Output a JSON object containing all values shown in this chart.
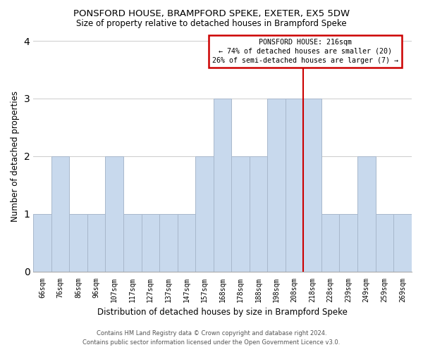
{
  "title": "PONSFORD HOUSE, BRAMPFORD SPEKE, EXETER, EX5 5DW",
  "subtitle": "Size of property relative to detached houses in Brampford Speke",
  "xlabel": "Distribution of detached houses by size in Brampford Speke",
  "ylabel": "Number of detached properties",
  "bin_labels": [
    "66sqm",
    "76sqm",
    "86sqm",
    "96sqm",
    "107sqm",
    "117sqm",
    "127sqm",
    "137sqm",
    "147sqm",
    "157sqm",
    "168sqm",
    "178sqm",
    "188sqm",
    "198sqm",
    "208sqm",
    "218sqm",
    "228sqm",
    "239sqm",
    "249sqm",
    "259sqm",
    "269sqm"
  ],
  "bar_heights": [
    1,
    2,
    1,
    1,
    2,
    1,
    1,
    1,
    1,
    2,
    3,
    2,
    2,
    3,
    3,
    3,
    1,
    1,
    2,
    1,
    1
  ],
  "bar_color": "#c8d9ed",
  "bar_edge_color": "#a8b8cc",
  "vline_color": "#cc0000",
  "ylim": [
    0,
    4
  ],
  "yticks": [
    0,
    1,
    2,
    3,
    4
  ],
  "annotation_title": "PONSFORD HOUSE: 216sqm",
  "annotation_line1": "← 74% of detached houses are smaller (20)",
  "annotation_line2": "26% of semi-detached houses are larger (7) →",
  "footnote1": "Contains HM Land Registry data © Crown copyright and database right 2024.",
  "footnote2": "Contains public sector information licensed under the Open Government Licence v3.0.",
  "background_color": "#ffffff",
  "grid_color": "#cccccc"
}
